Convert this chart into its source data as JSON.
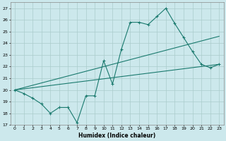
{
  "xlabel": "Humidex (Indice chaleur)",
  "bg_color": "#cce8ec",
  "grid_color": "#aacccc",
  "line_color": "#1a7a6e",
  "xlim": [
    -0.5,
    23.5
  ],
  "ylim": [
    17,
    27.5
  ],
  "yticks": [
    17,
    18,
    19,
    20,
    21,
    22,
    23,
    24,
    25,
    26,
    27
  ],
  "xticks": [
    0,
    1,
    2,
    3,
    4,
    5,
    6,
    7,
    8,
    9,
    10,
    11,
    12,
    13,
    14,
    15,
    16,
    17,
    18,
    19,
    20,
    21,
    22,
    23
  ],
  "data_line_x": [
    0,
    1,
    2,
    3,
    4,
    5,
    6,
    7,
    8,
    9,
    10,
    11,
    12,
    13,
    14,
    15,
    16,
    17,
    18,
    19,
    20,
    21,
    22,
    23
  ],
  "data_line_y": [
    20.0,
    19.7,
    19.3,
    18.8,
    18.0,
    18.5,
    18.5,
    17.2,
    19.5,
    19.5,
    22.5,
    20.5,
    23.5,
    25.8,
    25.8,
    25.6,
    26.3,
    27.0,
    25.7,
    24.5,
    23.3,
    22.2,
    21.9,
    22.2
  ],
  "trend1_x": [
    0,
    23
  ],
  "trend1_y": [
    20.0,
    22.2
  ],
  "trend2_x": [
    0,
    23
  ],
  "trend2_y": [
    20.0,
    24.6
  ],
  "figwidth": 3.2,
  "figheight": 2.0,
  "dpi": 100
}
